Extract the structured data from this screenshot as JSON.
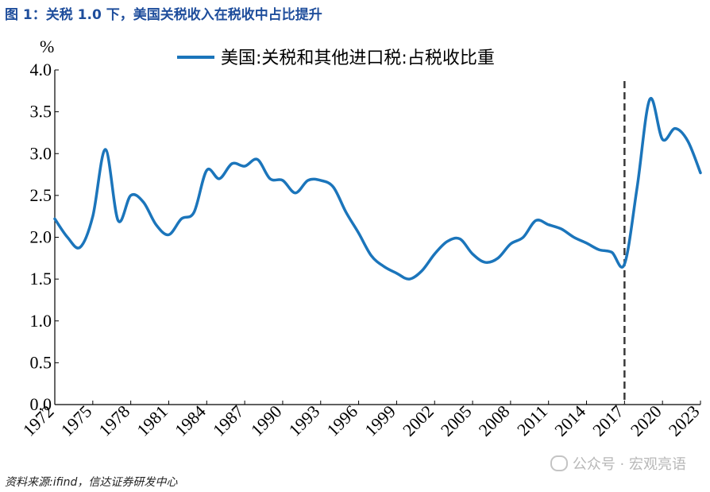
{
  "figure": {
    "title": "图 1：关税 1.0 下，美国关税收入在税收中占比提升",
    "source": "资料来源:ifind，信达证券研发中心",
    "watermark": "公众号 · 宏观亮语"
  },
  "chart_data": {
    "type": "line",
    "ylabel": "%",
    "ylim": [
      0.0,
      4.0
    ],
    "yticks": [
      "0.0",
      "0.5",
      "1.0",
      "1.5",
      "2.0",
      "2.5",
      "3.0",
      "3.5",
      "4.0"
    ],
    "xlim": [
      1972,
      2023
    ],
    "xticks": [
      "1972",
      "1975",
      "1978",
      "1981",
      "1984",
      "1987",
      "1990",
      "1993",
      "1996",
      "1999",
      "2002",
      "2005",
      "2008",
      "2011",
      "2014",
      "2017",
      "2020",
      "2023"
    ],
    "grid": false,
    "legend_position": "top",
    "reference_line": {
      "x": 2017,
      "style": "dashed"
    },
    "series": [
      {
        "name": "美国:关税和其他进口税:占税收比重",
        "color": "#1b75bb",
        "x": [
          1972,
          1973,
          1974,
          1975,
          1976,
          1977,
          1978,
          1979,
          1980,
          1981,
          1982,
          1983,
          1984,
          1985,
          1986,
          1987,
          1988,
          1989,
          1990,
          1991,
          1992,
          1993,
          1994,
          1995,
          1996,
          1997,
          1998,
          1999,
          2000,
          2001,
          2002,
          2003,
          2004,
          2005,
          2006,
          2007,
          2008,
          2009,
          2010,
          2011,
          2012,
          2013,
          2014,
          2015,
          2016,
          2017,
          2018,
          2019,
          2020,
          2021,
          2022,
          2023
        ],
        "values": [
          2.22,
          2.0,
          1.88,
          2.25,
          3.05,
          2.2,
          2.5,
          2.42,
          2.15,
          2.03,
          2.22,
          2.3,
          2.8,
          2.7,
          2.88,
          2.85,
          2.93,
          2.7,
          2.68,
          2.53,
          2.68,
          2.68,
          2.6,
          2.3,
          2.05,
          1.78,
          1.65,
          1.57,
          1.5,
          1.6,
          1.8,
          1.95,
          1.98,
          1.8,
          1.7,
          1.75,
          1.92,
          2.0,
          2.2,
          2.15,
          2.1,
          2.0,
          1.93,
          1.85,
          1.82,
          1.68,
          2.6,
          3.65,
          3.17,
          3.3,
          3.15,
          2.77
        ]
      }
    ]
  }
}
